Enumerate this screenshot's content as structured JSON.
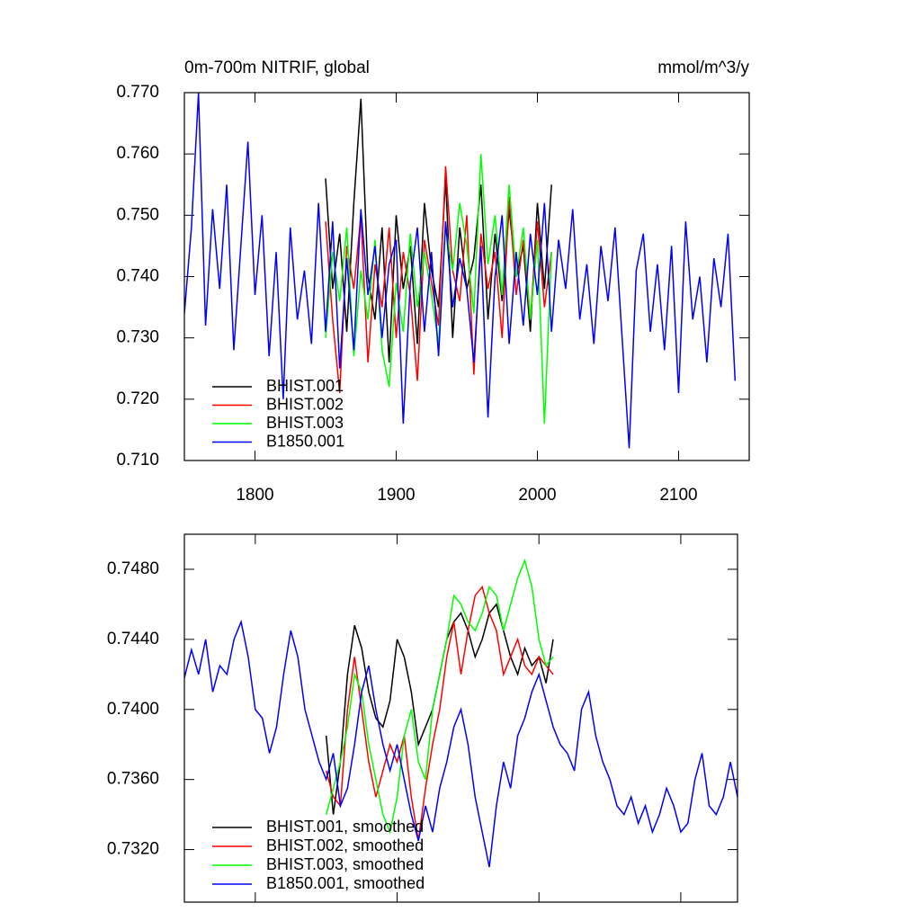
{
  "chart_data": [
    {
      "type": "line",
      "title": "0m-700m NITRIF, global",
      "units": "mmol/m^3/y",
      "xlim": [
        1750,
        2150
      ],
      "xticks": [
        1800,
        1900,
        2000,
        2100
      ],
      "ylim": [
        0.71,
        0.77
      ],
      "yticks": [
        {
          "value": 0.71,
          "label": "0.710"
        },
        {
          "value": 0.72,
          "label": "0.720"
        },
        {
          "value": 0.73,
          "label": "0.730"
        },
        {
          "value": 0.74,
          "label": "0.740"
        },
        {
          "value": 0.75,
          "label": "0.750"
        },
        {
          "value": 0.76,
          "label": "0.760"
        },
        {
          "value": 0.77,
          "label": "0.770"
        }
      ],
      "legend": "lower left",
      "series": [
        {
          "name": "BHIST.001",
          "color": "#000000",
          "x": [
            1850,
            1855,
            1860,
            1865,
            1870,
            1875,
            1880,
            1885,
            1890,
            1895,
            1900,
            1905,
            1910,
            1915,
            1920,
            1925,
            1930,
            1935,
            1940,
            1945,
            1950,
            1955,
            1960,
            1965,
            1970,
            1975,
            1980,
            1985,
            1990,
            1995,
            2000,
            2005,
            2010
          ],
          "values": [
            0.756,
            0.738,
            0.747,
            0.731,
            0.752,
            0.769,
            0.74,
            0.733,
            0.748,
            0.726,
            0.75,
            0.738,
            0.745,
            0.729,
            0.752,
            0.741,
            0.735,
            0.756,
            0.73,
            0.748,
            0.738,
            0.743,
            0.755,
            0.733,
            0.747,
            0.736,
            0.751,
            0.74,
            0.745,
            0.731,
            0.752,
            0.738,
            0.755
          ]
        },
        {
          "name": "BHIST.002",
          "color": "#ff0000",
          "x": [
            1850,
            1855,
            1860,
            1865,
            1870,
            1875,
            1880,
            1885,
            1890,
            1895,
            1900,
            1905,
            1910,
            1915,
            1920,
            1925,
            1930,
            1935,
            1940,
            1945,
            1950,
            1955,
            1960,
            1965,
            1970,
            1975,
            1980,
            1985,
            1990,
            1995,
            2000,
            2005,
            2010
          ],
          "values": [
            0.749,
            0.733,
            0.721,
            0.745,
            0.738,
            0.75,
            0.726,
            0.742,
            0.735,
            0.748,
            0.73,
            0.744,
            0.737,
            0.723,
            0.746,
            0.739,
            0.732,
            0.758,
            0.741,
            0.736,
            0.75,
            0.724,
            0.747,
            0.738,
            0.744,
            0.73,
            0.753,
            0.737,
            0.746,
            0.733,
            0.749,
            0.735,
            0.744
          ]
        },
        {
          "name": "BHIST.003",
          "color": "#00ff00",
          "x": [
            1850,
            1855,
            1860,
            1865,
            1870,
            1875,
            1880,
            1885,
            1890,
            1895,
            1900,
            1905,
            1910,
            1915,
            1920,
            1925,
            1930,
            1935,
            1940,
            1945,
            1950,
            1955,
            1960,
            1965,
            1970,
            1975,
            1980,
            1985,
            1990,
            1995,
            2000,
            2005,
            2010
          ],
          "values": [
            0.73,
            0.744,
            0.736,
            0.748,
            0.727,
            0.741,
            0.733,
            0.746,
            0.728,
            0.722,
            0.739,
            0.731,
            0.747,
            0.735,
            0.744,
            0.737,
            0.729,
            0.748,
            0.741,
            0.752,
            0.745,
            0.734,
            0.76,
            0.742,
            0.75,
            0.737,
            0.755,
            0.74,
            0.748,
            0.733,
            0.746,
            0.716,
            0.744
          ]
        },
        {
          "name": "B1850.001",
          "color": "#0000ff",
          "x": [
            1750,
            1755,
            1760,
            1765,
            1770,
            1775,
            1780,
            1785,
            1790,
            1795,
            1800,
            1805,
            1810,
            1815,
            1820,
            1825,
            1830,
            1835,
            1840,
            1845,
            1850,
            1855,
            1860,
            1865,
            1870,
            1875,
            1880,
            1885,
            1890,
            1895,
            1900,
            1905,
            1910,
            1915,
            1920,
            1925,
            1930,
            1935,
            1940,
            1945,
            1950,
            1955,
            1960,
            1965,
            1970,
            1975,
            1980,
            1985,
            1990,
            1995,
            2000,
            2005,
            2010,
            2015,
            2020,
            2025,
            2030,
            2035,
            2040,
            2045,
            2050,
            2055,
            2060,
            2065,
            2070,
            2075,
            2080,
            2085,
            2090,
            2095,
            2100,
            2105,
            2110,
            2115,
            2120,
            2125,
            2130,
            2135,
            2140
          ],
          "values": [
            0.734,
            0.748,
            0.77,
            0.732,
            0.751,
            0.738,
            0.755,
            0.728,
            0.745,
            0.762,
            0.737,
            0.75,
            0.727,
            0.744,
            0.72,
            0.748,
            0.733,
            0.741,
            0.729,
            0.752,
            0.731,
            0.749,
            0.725,
            0.743,
            0.728,
            0.751,
            0.737,
            0.745,
            0.73,
            0.742,
            0.746,
            0.716,
            0.739,
            0.748,
            0.731,
            0.744,
            0.727,
            0.749,
            0.735,
            0.743,
            0.738,
            0.726,
            0.745,
            0.717,
            0.74,
            0.75,
            0.729,
            0.744,
            0.732,
            0.747,
            0.737,
            0.752,
            0.731,
            0.746,
            0.738,
            0.751,
            0.733,
            0.742,
            0.729,
            0.745,
            0.736,
            0.748,
            0.73,
            0.712,
            0.741,
            0.747,
            0.731,
            0.742,
            0.728,
            0.745,
            0.721,
            0.749,
            0.733,
            0.74,
            0.726,
            0.743,
            0.735,
            0.747,
            0.723
          ]
        }
      ]
    },
    {
      "type": "line",
      "xlim": [
        1750,
        2140
      ],
      "ylim": [
        0.729,
        0.75
      ],
      "yticks": [
        {
          "value": 0.732,
          "label": "0.7320"
        },
        {
          "value": 0.736,
          "label": "0.7360"
        },
        {
          "value": 0.74,
          "label": "0.7400"
        },
        {
          "value": 0.744,
          "label": "0.7440"
        },
        {
          "value": 0.748,
          "label": "0.7480"
        }
      ],
      "legend": "lower left",
      "series": [
        {
          "name": "BHIST.001, smoothed",
          "color": "#000000",
          "x": [
            1850,
            1855,
            1860,
            1865,
            1870,
            1875,
            1880,
            1885,
            1890,
            1895,
            1900,
            1905,
            1910,
            1915,
            1920,
            1925,
            1930,
            1935,
            1940,
            1945,
            1950,
            1955,
            1960,
            1965,
            1970,
            1975,
            1980,
            1985,
            1990,
            1995,
            2000,
            2005,
            2010
          ],
          "values": [
            0.7385,
            0.734,
            0.737,
            0.742,
            0.7448,
            0.7435,
            0.741,
            0.7395,
            0.739,
            0.7405,
            0.744,
            0.743,
            0.741,
            0.738,
            0.739,
            0.74,
            0.742,
            0.744,
            0.745,
            0.7455,
            0.7445,
            0.743,
            0.744,
            0.7455,
            0.746,
            0.7445,
            0.743,
            0.742,
            0.7435,
            0.7425,
            0.743,
            0.7415,
            0.744
          ]
        },
        {
          "name": "BHIST.002, smoothed",
          "color": "#ff0000",
          "x": [
            1850,
            1855,
            1860,
            1865,
            1870,
            1875,
            1880,
            1885,
            1890,
            1895,
            1900,
            1905,
            1910,
            1915,
            1920,
            1925,
            1930,
            1935,
            1940,
            1945,
            1950,
            1955,
            1960,
            1965,
            1970,
            1975,
            1980,
            1985,
            1990,
            1995,
            2000,
            2005,
            2010
          ],
          "values": [
            0.7365,
            0.735,
            0.7345,
            0.74,
            0.743,
            0.74,
            0.737,
            0.735,
            0.7365,
            0.738,
            0.737,
            0.7385,
            0.735,
            0.7325,
            0.7355,
            0.738,
            0.74,
            0.743,
            0.745,
            0.742,
            0.7445,
            0.7465,
            0.747,
            0.7455,
            0.7445,
            0.742,
            0.743,
            0.744,
            0.7425,
            0.742,
            0.743,
            0.7425,
            0.742
          ]
        },
        {
          "name": "BHIST.003, smoothed",
          "color": "#00ff00",
          "x": [
            1850,
            1855,
            1860,
            1865,
            1870,
            1875,
            1880,
            1885,
            1890,
            1895,
            1900,
            1905,
            1910,
            1915,
            1920,
            1925,
            1930,
            1935,
            1940,
            1945,
            1950,
            1955,
            1960,
            1965,
            1970,
            1975,
            1980,
            1985,
            1990,
            1995,
            2000,
            2005,
            2010
          ],
          "values": [
            0.734,
            0.7355,
            0.737,
            0.739,
            0.742,
            0.741,
            0.738,
            0.736,
            0.734,
            0.733,
            0.735,
            0.7385,
            0.74,
            0.737,
            0.736,
            0.74,
            0.742,
            0.744,
            0.7465,
            0.746,
            0.745,
            0.7445,
            0.7455,
            0.747,
            0.7465,
            0.7445,
            0.746,
            0.7475,
            0.7485,
            0.747,
            0.744,
            0.7425,
            0.743
          ]
        },
        {
          "name": "B1850.001, smoothed",
          "color": "#0000ff",
          "x": [
            1750,
            1755,
            1760,
            1765,
            1770,
            1775,
            1780,
            1785,
            1790,
            1795,
            1800,
            1805,
            1810,
            1815,
            1820,
            1825,
            1830,
            1835,
            1840,
            1845,
            1850,
            1855,
            1860,
            1865,
            1870,
            1875,
            1880,
            1885,
            1890,
            1895,
            1900,
            1905,
            1910,
            1915,
            1920,
            1925,
            1930,
            1935,
            1940,
            1945,
            1950,
            1955,
            1960,
            1965,
            1970,
            1975,
            1980,
            1985,
            1990,
            1995,
            2000,
            2005,
            2010,
            2015,
            2020,
            2025,
            2030,
            2035,
            2040,
            2045,
            2050,
            2055,
            2060,
            2065,
            2070,
            2075,
            2080,
            2085,
            2090,
            2095,
            2100,
            2105,
            2110,
            2115,
            2120,
            2125,
            2130,
            2135,
            2140
          ],
          "values": [
            0.7418,
            0.7434,
            0.742,
            0.744,
            0.741,
            0.7425,
            0.742,
            0.744,
            0.745,
            0.743,
            0.74,
            0.7395,
            0.7375,
            0.739,
            0.742,
            0.7445,
            0.743,
            0.74,
            0.7385,
            0.737,
            0.736,
            0.7375,
            0.7345,
            0.7355,
            0.738,
            0.741,
            0.7425,
            0.74,
            0.738,
            0.7365,
            0.738,
            0.736,
            0.734,
            0.7325,
            0.7345,
            0.733,
            0.7355,
            0.737,
            0.739,
            0.74,
            0.738,
            0.735,
            0.733,
            0.731,
            0.7345,
            0.737,
            0.7355,
            0.7385,
            0.7395,
            0.741,
            0.742,
            0.7405,
            0.739,
            0.738,
            0.7375,
            0.7365,
            0.74,
            0.741,
            0.7385,
            0.737,
            0.736,
            0.7345,
            0.734,
            0.735,
            0.7335,
            0.7345,
            0.733,
            0.734,
            0.7355,
            0.7345,
            0.733,
            0.7335,
            0.736,
            0.7375,
            0.7345,
            0.734,
            0.735,
            0.737,
            0.735
          ]
        }
      ]
    }
  ]
}
